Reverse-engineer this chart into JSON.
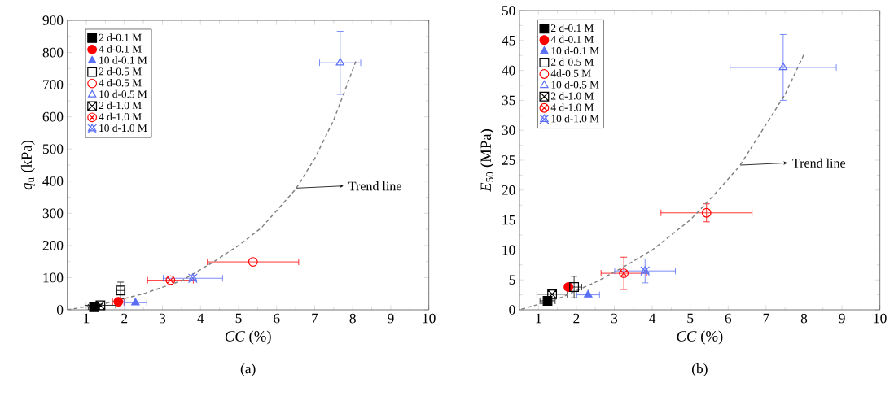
{
  "chart_data": [
    {
      "type": "scatter",
      "title": "(a)",
      "xlabel": "*CC* (%)",
      "ylabel": "*q*$_{u}$ (kPa)",
      "xlim": [
        0.5,
        10
      ],
      "ylim": [
        0,
        900
      ],
      "xticks": [
        1,
        2,
        3,
        4,
        5,
        6,
        7,
        8,
        9,
        10
      ],
      "yticks": [
        0,
        100,
        200,
        300,
        400,
        500,
        600,
        700,
        800,
        900
      ],
      "grid": false,
      "legend": "top left",
      "annotations": [
        "Trend line"
      ],
      "series": [
        {
          "name": "2 d-0.1 M",
          "color": "#000000",
          "marker": "square",
          "x": [
            1.2
          ],
          "values": [
            8
          ],
          "xerrors": [
            0.15
          ]
        },
        {
          "name": "4 d-0.1 M",
          "color": "#ff0000",
          "marker": "circle",
          "x": [
            1.84
          ],
          "values": [
            25
          ],
          "xerrors": [
            0.15
          ]
        },
        {
          "name": "10 d-0.1 M",
          "color": "#5b6ff5",
          "marker": "triangle",
          "x": [
            2.29
          ],
          "values": [
            22
          ],
          "xerrors": [
            0.3
          ]
        },
        {
          "name": "2 d-0.5 M",
          "color": "#000000",
          "marker": "square",
          "x": [
            1.9
          ],
          "values": [
            60
          ],
          "errors": [
            26
          ],
          "xerrors": [
            0.1
          ]
        },
        {
          "name": "4 d-0.5 M",
          "color": "#ff0000",
          "marker": "circle",
          "x": [
            5.38
          ],
          "values": [
            149
          ],
          "xerrors": [
            1.2
          ]
        },
        {
          "name": "10 d-0.5 M",
          "color": "#5b6ff5",
          "marker": "triangle",
          "x": [
            7.67
          ],
          "values": [
            768
          ],
          "errors": [
            98
          ],
          "xerrors": [
            0.54
          ]
        },
        {
          "name": "2 d-1.0 M",
          "color": "#000000",
          "marker": "cross",
          "x": [
            1.37
          ],
          "values": [
            14
          ],
          "xerrors": [
            0.4
          ]
        },
        {
          "name": "4 d-1.0 M",
          "color": "#ff0000",
          "marker": "cross",
          "x": [
            3.21
          ],
          "values": [
            92
          ],
          "xerrors": [
            0.6
          ]
        },
        {
          "name": "10 d-1.0 M",
          "color": "#5b6ff5",
          "marker": "cross",
          "x": [
            3.8
          ],
          "values": [
            98
          ],
          "xerrors": [
            0.78
          ]
        },
        {
          "type": "line",
          "color": "#808080",
          "line_style": "dashed",
          "marker": "none",
          "x": [
            0.5,
            1.5,
            2.5,
            3.5,
            4.3,
            5.0,
            5.6,
            6.5,
            7.0,
            7.5,
            8.1
          ],
          "values": [
            0,
            20,
            50,
            90,
            146,
            200,
            255,
            375,
            470,
            590,
            778
          ]
        }
      ]
    },
    {
      "type": "scatter",
      "title": "(b)",
      "xlabel": "*CC* (%)",
      "ylabel": "*E*$_{50}$ (MPa)",
      "xlim": [
        0.5,
        10
      ],
      "ylim": [
        0,
        50
      ],
      "xticks": [
        1,
        2,
        3,
        4,
        5,
        6,
        7,
        8,
        9,
        10
      ],
      "yticks": [
        0,
        5,
        10,
        15,
        20,
        25,
        30,
        35,
        40,
        45,
        50
      ],
      "grid": false,
      "legend": "top left",
      "annotations": [
        "Trend line"
      ],
      "series": [
        {
          "name": "2 d-0.1 M",
          "color": "#000000",
          "marker": "square",
          "x": [
            1.24
          ],
          "values": [
            1.5
          ],
          "xerrors": [
            0.2
          ]
        },
        {
          "name": "4 d-0.1 M",
          "color": "#ff0000",
          "marker": "circle",
          "x": [
            1.79
          ],
          "values": [
            3.8
          ],
          "xerrors": [
            0.1
          ]
        },
        {
          "name": "10 d-0.1 M",
          "color": "#5b6ff5",
          "marker": "triangle",
          "x": [
            2.31
          ],
          "values": [
            2.5
          ],
          "xerrors": [
            0.3
          ]
        },
        {
          "name": "2 d-0.5 M",
          "color": "#000000",
          "marker": "square",
          "x": [
            1.94
          ],
          "values": [
            3.8
          ],
          "errors": [
            1.8
          ],
          "xerrors": [
            0.2
          ]
        },
        {
          "name": "4d-0.5 M",
          "color": "#ff0000",
          "marker": "circle",
          "x": [
            5.43
          ],
          "values": [
            16.2
          ],
          "errors": [
            1.5
          ],
          "xerrors": [
            1.2
          ]
        },
        {
          "name": "10 d-0.5 M",
          "color": "#5b6ff5",
          "marker": "triangle",
          "x": [
            7.45
          ],
          "values": [
            40.5
          ],
          "errors": [
            5.5
          ],
          "xerrors": [
            1.4
          ]
        },
        {
          "name": "2 d-1.0 M",
          "color": "#000000",
          "marker": "cross",
          "x": [
            1.36
          ],
          "values": [
            2.6
          ],
          "xerrors": [
            0.4
          ]
        },
        {
          "name": "4 d-1.0 M",
          "color": "#ff0000",
          "marker": "cross",
          "x": [
            3.25
          ],
          "values": [
            6.1
          ],
          "errors": [
            2.7
          ],
          "xerrors": [
            0.6
          ]
        },
        {
          "name": "10 d-1.0 M",
          "color": "#5b6ff5",
          "marker": "cross",
          "x": [
            3.81
          ],
          "values": [
            6.5
          ],
          "errors": [
            2
          ],
          "xerrors": [
            0.8
          ]
        },
        {
          "type": "line",
          "color": "#808080",
          "line_style": "dashed",
          "marker": "none",
          "x": [
            0.55,
            1.5,
            2.5,
            3.2,
            4.0,
            5.0,
            5.6,
            6.3,
            7.0,
            7.5,
            8.0
          ],
          "values": [
            0.1,
            1.8,
            4.6,
            7,
            10,
            15,
            19,
            24,
            31,
            36,
            42.7
          ]
        }
      ]
    }
  ]
}
